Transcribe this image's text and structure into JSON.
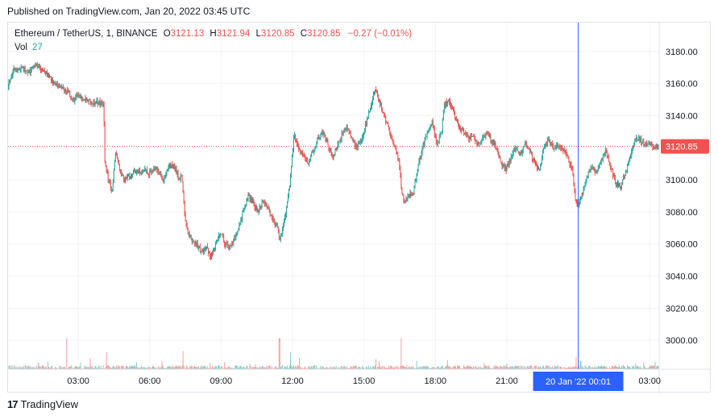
{
  "published": "Published on TradingView.com, Jan 20, 2022 03:45 UTC",
  "legend": {
    "symbol": "Ethereum / TetherUS, 1, BINANCE",
    "o_label": "O",
    "o_value": "3121.13",
    "h_label": "H",
    "h_value": "3121.94",
    "l_label": "L",
    "l_value": "3120.85",
    "c_label": "C",
    "c_value": "3120.85",
    "change": "−0.27 (−0.01%)",
    "vol_label": "Vol",
    "vol_value": "27"
  },
  "footer": {
    "brand": "TradingView",
    "logo_text": "17"
  },
  "colors": {
    "up": "#26a69a",
    "down": "#ef5350",
    "crosshair": "#2962ff",
    "time_badge": "#2962ff",
    "price_badge": "#ef5350",
    "grid": "#f0f3fa"
  },
  "chart_data": {
    "type": "candlestick",
    "timeframe": "1",
    "exchange": "BINANCE",
    "ylim": [
      2982,
      3198
    ],
    "y_ticks": [
      3000,
      3020,
      3040,
      3060,
      3080,
      3100,
      3120,
      3140,
      3160,
      3180
    ],
    "y_tick_labels": [
      "3000.00",
      "3020.00",
      "3040.00",
      "3060.00",
      "3080.00",
      "3100.00",
      "3120.00",
      "3140.00",
      "3160.00",
      "3180.00"
    ],
    "x_range_hours": [
      0.05,
      27.4
    ],
    "x_ticks": [
      {
        "hour": 3,
        "label": "03:00"
      },
      {
        "hour": 6,
        "label": "06:00"
      },
      {
        "hour": 9,
        "label": "09:00"
      },
      {
        "hour": 12,
        "label": "12:00"
      },
      {
        "hour": 15,
        "label": "15:00"
      },
      {
        "hour": 18,
        "label": "18:00"
      },
      {
        "hour": 21,
        "label": "21:00"
      },
      {
        "hour": 27,
        "label": "03:00"
      }
    ],
    "crosshair_hour": 24.0,
    "crosshair_label": "20 Jan '22   00:01",
    "last_price": 3120.85,
    "last_price_label": "3120.85",
    "price_path": [
      [
        0.05,
        3158
      ],
      [
        0.3,
        3168
      ],
      [
        0.7,
        3170
      ],
      [
        1.0,
        3167
      ],
      [
        1.2,
        3172
      ],
      [
        1.5,
        3168
      ],
      [
        1.8,
        3165
      ],
      [
        2.0,
        3160
      ],
      [
        2.3,
        3157
      ],
      [
        2.6,
        3155
      ],
      [
        2.8,
        3150
      ],
      [
        3.0,
        3152
      ],
      [
        3.3,
        3150
      ],
      [
        3.6,
        3148
      ],
      [
        3.9,
        3148
      ],
      [
        4.1,
        3146
      ],
      [
        4.15,
        3112
      ],
      [
        4.3,
        3100
      ],
      [
        4.45,
        3092
      ],
      [
        4.6,
        3118
      ],
      [
        4.8,
        3104
      ],
      [
        5.0,
        3100
      ],
      [
        5.2,
        3102
      ],
      [
        5.4,
        3106
      ],
      [
        5.6,
        3104
      ],
      [
        5.8,
        3106
      ],
      [
        6.0,
        3104
      ],
      [
        6.2,
        3108
      ],
      [
        6.4,
        3105
      ],
      [
        6.6,
        3100
      ],
      [
        6.8,
        3108
      ],
      [
        7.0,
        3110
      ],
      [
        7.2,
        3103
      ],
      [
        7.4,
        3100
      ],
      [
        7.5,
        3080
      ],
      [
        7.6,
        3068
      ],
      [
        7.8,
        3062
      ],
      [
        8.0,
        3060
      ],
      [
        8.2,
        3055
      ],
      [
        8.4,
        3058
      ],
      [
        8.6,
        3052
      ],
      [
        8.8,
        3060
      ],
      [
        9.0,
        3068
      ],
      [
        9.2,
        3060
      ],
      [
        9.4,
        3058
      ],
      [
        9.6,
        3064
      ],
      [
        9.8,
        3072
      ],
      [
        10.0,
        3082
      ],
      [
        10.2,
        3090
      ],
      [
        10.4,
        3085
      ],
      [
        10.6,
        3080
      ],
      [
        10.8,
        3088
      ],
      [
        11.0,
        3082
      ],
      [
        11.2,
        3075
      ],
      [
        11.4,
        3070
      ],
      [
        11.5,
        3062
      ],
      [
        11.7,
        3075
      ],
      [
        11.9,
        3095
      ],
      [
        12.0,
        3112
      ],
      [
        12.1,
        3128
      ],
      [
        12.3,
        3118
      ],
      [
        12.5,
        3115
      ],
      [
        12.7,
        3110
      ],
      [
        12.9,
        3118
      ],
      [
        13.1,
        3125
      ],
      [
        13.3,
        3130
      ],
      [
        13.5,
        3122
      ],
      [
        13.7,
        3114
      ],
      [
        13.9,
        3120
      ],
      [
        14.1,
        3128
      ],
      [
        14.3,
        3134
      ],
      [
        14.5,
        3126
      ],
      [
        14.7,
        3120
      ],
      [
        14.9,
        3124
      ],
      [
        15.0,
        3128
      ],
      [
        15.2,
        3140
      ],
      [
        15.4,
        3150
      ],
      [
        15.5,
        3157
      ],
      [
        15.7,
        3148
      ],
      [
        15.9,
        3140
      ],
      [
        16.1,
        3130
      ],
      [
        16.3,
        3122
      ],
      [
        16.5,
        3112
      ],
      [
        16.6,
        3095
      ],
      [
        16.7,
        3086
      ],
      [
        16.9,
        3090
      ],
      [
        17.1,
        3092
      ],
      [
        17.3,
        3108
      ],
      [
        17.5,
        3120
      ],
      [
        17.7,
        3130
      ],
      [
        17.9,
        3136
      ],
      [
        18.1,
        3122
      ],
      [
        18.3,
        3130
      ],
      [
        18.4,
        3146
      ],
      [
        18.6,
        3150
      ],
      [
        18.8,
        3142
      ],
      [
        19.0,
        3134
      ],
      [
        19.2,
        3130
      ],
      [
        19.4,
        3126
      ],
      [
        19.6,
        3128
      ],
      [
        19.8,
        3122
      ],
      [
        20.0,
        3126
      ],
      [
        20.2,
        3130
      ],
      [
        20.4,
        3124
      ],
      [
        20.6,
        3120
      ],
      [
        20.8,
        3110
      ],
      [
        21.0,
        3106
      ],
      [
        21.2,
        3114
      ],
      [
        21.4,
        3120
      ],
      [
        21.6,
        3116
      ],
      [
        21.8,
        3122
      ],
      [
        22.0,
        3118
      ],
      [
        22.2,
        3110
      ],
      [
        22.4,
        3106
      ],
      [
        22.6,
        3120
      ],
      [
        22.8,
        3125
      ],
      [
        23.0,
        3120
      ],
      [
        23.2,
        3122
      ],
      [
        23.4,
        3118
      ],
      [
        23.6,
        3114
      ],
      [
        23.8,
        3106
      ],
      [
        23.9,
        3088
      ],
      [
        24.0,
        3084
      ],
      [
        24.2,
        3090
      ],
      [
        24.4,
        3102
      ],
      [
        24.6,
        3108
      ],
      [
        24.8,
        3104
      ],
      [
        25.0,
        3112
      ],
      [
        25.2,
        3118
      ],
      [
        25.4,
        3108
      ],
      [
        25.6,
        3098
      ],
      [
        25.8,
        3096
      ],
      [
        26.0,
        3104
      ],
      [
        26.2,
        3114
      ],
      [
        26.4,
        3124
      ],
      [
        26.6,
        3126
      ],
      [
        26.8,
        3122
      ],
      [
        27.0,
        3124
      ],
      [
        27.2,
        3120
      ],
      [
        27.4,
        3120.85
      ]
    ],
    "volume_spikes": [
      [
        2.5,
        0.55
      ],
      [
        3.1,
        0.12
      ],
      [
        3.5,
        0.2
      ],
      [
        4.2,
        0.3
      ],
      [
        6.5,
        0.15
      ],
      [
        7.4,
        0.32
      ],
      [
        10.2,
        0.1
      ],
      [
        11.45,
        0.55
      ],
      [
        11.9,
        0.3
      ],
      [
        12.3,
        0.2
      ],
      [
        15.5,
        0.18
      ],
      [
        16.55,
        0.55
      ],
      [
        17.2,
        0.15
      ],
      [
        18.5,
        0.16
      ],
      [
        21.0,
        0.1
      ],
      [
        23.9,
        0.22
      ],
      [
        24.1,
        0.14
      ],
      [
        26.4,
        0.1
      ]
    ]
  }
}
